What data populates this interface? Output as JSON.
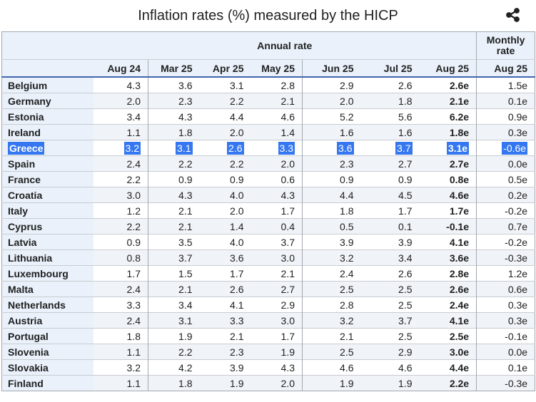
{
  "header": {
    "title": "Inflation rates (%) measured by the HICP",
    "share_icon": "share-icon"
  },
  "colors": {
    "text": "#202122",
    "header_bg": "#eaf1fa",
    "stripe_bg": "#f0f3f7",
    "outer_border": "#a2a9b1",
    "row_border": "#c8ccd1",
    "header_underline": "#4166ad",
    "selection_highlight": "#3577f0",
    "selection_text": "#ffffff"
  },
  "chart_data": {
    "type": "table",
    "title": "Inflation rates (%) measured by the HICP",
    "group_headers": [
      {
        "label": "Annual rate",
        "colspan": 7
      },
      {
        "label": "Monthly rate",
        "colspan": 1
      }
    ],
    "columns": [
      "Aug 24",
      "Mar 25",
      "Apr 25",
      "May 25",
      "Jun 25",
      "Jul 25",
      "Aug 25",
      "Aug 25"
    ],
    "selected_row": "Greece",
    "rows": [
      {
        "country": "Belgium",
        "values": [
          "4.3",
          "3.6",
          "3.1",
          "2.8",
          "2.9",
          "2.6",
          "2.6e",
          "1.5e"
        ]
      },
      {
        "country": "Germany",
        "values": [
          "2.0",
          "2.3",
          "2.2",
          "2.1",
          "2.0",
          "1.8",
          "2.1e",
          "0.1e"
        ]
      },
      {
        "country": "Estonia",
        "values": [
          "3.4",
          "4.3",
          "4.4",
          "4.6",
          "5.2",
          "5.6",
          "6.2e",
          "0.9e"
        ]
      },
      {
        "country": "Ireland",
        "values": [
          "1.1",
          "1.8",
          "2.0",
          "1.4",
          "1.6",
          "1.6",
          "1.8e",
          "0.3e"
        ]
      },
      {
        "country": "Greece",
        "values": [
          "3.2",
          "3.1",
          "2.6",
          "3.3",
          "3.6",
          "3.7",
          "3.1e",
          "-0.6e"
        ],
        "selected": true
      },
      {
        "country": "Spain",
        "values": [
          "2.4",
          "2.2",
          "2.2",
          "2.0",
          "2.3",
          "2.7",
          "2.7e",
          "0.0e"
        ]
      },
      {
        "country": "France",
        "values": [
          "2.2",
          "0.9",
          "0.9",
          "0.6",
          "0.9",
          "0.9",
          "0.8e",
          "0.5e"
        ]
      },
      {
        "country": "Croatia",
        "values": [
          "3.0",
          "4.3",
          "4.0",
          "4.3",
          "4.4",
          "4.5",
          "4.6e",
          "0.2e"
        ]
      },
      {
        "country": "Italy",
        "values": [
          "1.2",
          "2.1",
          "2.0",
          "1.7",
          "1.8",
          "1.7",
          "1.7e",
          "-0.2e"
        ]
      },
      {
        "country": "Cyprus",
        "values": [
          "2.2",
          "2.1",
          "1.4",
          "0.4",
          "0.5",
          "0.1",
          "-0.1e",
          "0.7e"
        ]
      },
      {
        "country": "Latvia",
        "values": [
          "0.9",
          "3.5",
          "4.0",
          "3.7",
          "3.9",
          "3.9",
          "4.1e",
          "-0.2e"
        ]
      },
      {
        "country": "Lithuania",
        "values": [
          "0.8",
          "3.7",
          "3.6",
          "3.0",
          "3.2",
          "3.4",
          "3.6e",
          "-0.3e"
        ]
      },
      {
        "country": "Luxembourg",
        "values": [
          "1.7",
          "1.5",
          "1.7",
          "2.1",
          "2.4",
          "2.6",
          "2.8e",
          "1.2e"
        ]
      },
      {
        "country": "Malta",
        "values": [
          "2.4",
          "2.1",
          "2.6",
          "2.7",
          "2.5",
          "2.5",
          "2.6e",
          "0.6e"
        ]
      },
      {
        "country": "Netherlands",
        "values": [
          "3.3",
          "3.4",
          "4.1",
          "2.9",
          "2.8",
          "2.5",
          "2.4e",
          "0.3e"
        ]
      },
      {
        "country": "Austria",
        "values": [
          "2.4",
          "3.1",
          "3.3",
          "3.0",
          "3.2",
          "3.7",
          "4.1e",
          "0.3e"
        ]
      },
      {
        "country": "Portugal",
        "values": [
          "1.8",
          "1.9",
          "2.1",
          "1.7",
          "2.1",
          "2.5",
          "2.5e",
          "-0.1e"
        ]
      },
      {
        "country": "Slovenia",
        "values": [
          "1.1",
          "2.2",
          "2.3",
          "1.9",
          "2.5",
          "2.9",
          "3.0e",
          "0.0e"
        ]
      },
      {
        "country": "Slovakia",
        "values": [
          "3.2",
          "4.2",
          "3.9",
          "4.3",
          "4.6",
          "4.6",
          "4.4e",
          "0.1e"
        ]
      },
      {
        "country": "Finland",
        "values": [
          "1.1",
          "1.8",
          "1.9",
          "2.0",
          "1.9",
          "1.9",
          "2.2e",
          "-0.3e"
        ]
      }
    ]
  }
}
